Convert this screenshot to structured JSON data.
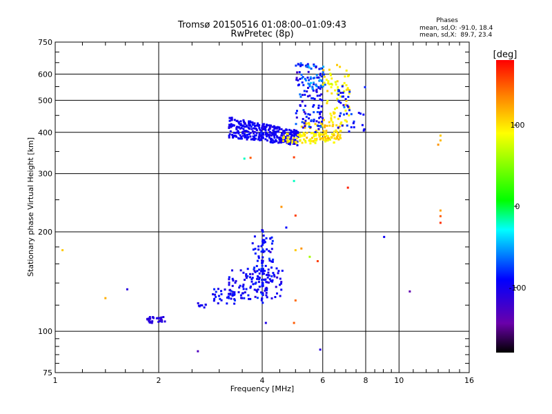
{
  "chart_data": {
    "type": "scatter",
    "title": "Tromsø 20150516 01:08:00–01:09:43",
    "subtitle": "RwPretec (8p)",
    "xlabel": "Frequency [MHz]",
    "ylabel": "Stationary phase Virtual Height [km]",
    "x_scale": "log",
    "y_scale": "log",
    "xlim": [
      1,
      16
    ],
    "ylim": [
      75,
      750
    ],
    "x_ticks": [
      1,
      2,
      4,
      6,
      8,
      10,
      16
    ],
    "x_tick_labels": [
      "1",
      "2",
      "4",
      "6",
      "8",
      "10",
      "16"
    ],
    "x_grid_lines": [
      1,
      2,
      4,
      6,
      8,
      10
    ],
    "y_ticks": [
      75,
      100,
      200,
      300,
      400,
      500,
      600,
      750
    ],
    "y_tick_labels": [
      "75",
      "100",
      "200",
      "300",
      "400",
      "500",
      "600",
      "750"
    ],
    "y_grid_lines": [
      100,
      200,
      300,
      400,
      500,
      600
    ],
    "grid": true,
    "phase_stats": {
      "heading": "Phases",
      "line_o": "mean, sd,O: -91.0, 18.4",
      "line_x": "mean, sd,X:  89.7, 23.4"
    },
    "colorbar": {
      "label": "[deg]",
      "range": [
        -180,
        180
      ],
      "ticks": [
        100,
        0,
        -100
      ],
      "tick_labels": [
        "100",
        "0",
        "-100"
      ],
      "colormap": "rainbow"
    },
    "clusters": [
      {
        "kind": "band",
        "x0": 3.2,
        "x1": 5.1,
        "ytop0": 445,
        "ytop1": 405,
        "ybot0": 385,
        "ybot1": 365,
        "n": 360,
        "phase": -98,
        "phase_sd": 10
      },
      {
        "kind": "area",
        "x0": 4.6,
        "x1": 6.5,
        "y0": 370,
        "y1": 400,
        "n": 80,
        "phase": 93,
        "phase_sd": 12
      },
      {
        "kind": "area",
        "x0": 5.2,
        "x1": 6.8,
        "y0": 380,
        "y1": 430,
        "n": 70,
        "phase": 105,
        "phase_sd": 15
      },
      {
        "kind": "area",
        "x0": 5.0,
        "x1": 6.0,
        "y0": 400,
        "y1": 650,
        "n": 120,
        "phase": -92,
        "phase_sd": 28
      },
      {
        "kind": "area",
        "x0": 5.3,
        "x1": 6.1,
        "y0": 540,
        "y1": 640,
        "n": 30,
        "phase": -60,
        "phase_sd": 15
      },
      {
        "kind": "area",
        "x0": 6.0,
        "x1": 7.2,
        "y0": 420,
        "y1": 640,
        "n": 70,
        "phase": 95,
        "phase_sd": 14
      },
      {
        "kind": "area",
        "x0": 6.6,
        "x1": 8.0,
        "y0": 400,
        "y1": 560,
        "n": 40,
        "phase": -88,
        "phase_sd": 20
      },
      {
        "kind": "area",
        "x0": 3.2,
        "x1": 4.6,
        "y0": 125,
        "y1": 155,
        "n": 110,
        "phase": -98,
        "phase_sd": 14
      },
      {
        "kind": "area",
        "x0": 2.8,
        "x1": 3.4,
        "y0": 120,
        "y1": 135,
        "n": 30,
        "phase": -90,
        "phase_sd": 18
      },
      {
        "kind": "area",
        "x0": 3.75,
        "x1": 4.3,
        "y0": 140,
        "y1": 195,
        "n": 55,
        "phase": -90,
        "phase_sd": 18
      },
      {
        "kind": "line",
        "x0": 3.98,
        "x1": 4.02,
        "y0": 108,
        "y1": 210,
        "n": 35,
        "phase": -85,
        "phase_sd": 22
      },
      {
        "kind": "area",
        "x0": 1.85,
        "x1": 2.1,
        "y0": 106,
        "y1": 111,
        "n": 32,
        "phase": -110,
        "phase_sd": 8
      },
      {
        "kind": "area",
        "x0": 2.6,
        "x1": 2.75,
        "y0": 118,
        "y1": 122,
        "n": 8,
        "phase": -100,
        "phase_sd": 10
      }
    ],
    "points": [
      {
        "x": 1.05,
        "y": 176,
        "phase": 110
      },
      {
        "x": 1.4,
        "y": 126,
        "phase": 120
      },
      {
        "x": 1.62,
        "y": 134,
        "phase": -110
      },
      {
        "x": 2.6,
        "y": 87,
        "phase": -130
      },
      {
        "x": 4.1,
        "y": 106,
        "phase": -105
      },
      {
        "x": 4.95,
        "y": 106,
        "phase": 150
      },
      {
        "x": 5.0,
        "y": 124,
        "phase": 145
      },
      {
        "x": 3.7,
        "y": 335,
        "phase": 150
      },
      {
        "x": 3.55,
        "y": 333,
        "phase": -20
      },
      {
        "x": 4.95,
        "y": 336,
        "phase": 160
      },
      {
        "x": 4.95,
        "y": 285,
        "phase": -20
      },
      {
        "x": 7.1,
        "y": 272,
        "phase": 170
      },
      {
        "x": 4.55,
        "y": 238,
        "phase": 130
      },
      {
        "x": 5.0,
        "y": 224,
        "phase": 160
      },
      {
        "x": 4.7,
        "y": 206,
        "phase": -90
      },
      {
        "x": 5.5,
        "y": 168,
        "phase": 60
      },
      {
        "x": 5.8,
        "y": 163,
        "phase": 160
      },
      {
        "x": 5.0,
        "y": 176,
        "phase": 110
      },
      {
        "x": 5.2,
        "y": 178,
        "phase": 130
      },
      {
        "x": 5.9,
        "y": 88,
        "phase": -110
      },
      {
        "x": 9.05,
        "y": 193,
        "phase": -95
      },
      {
        "x": 10.75,
        "y": 132,
        "phase": -140
      },
      {
        "x": 13.2,
        "y": 391,
        "phase": 110
      },
      {
        "x": 13.2,
        "y": 378,
        "phase": 115
      },
      {
        "x": 13.0,
        "y": 367,
        "phase": 130
      },
      {
        "x": 13.2,
        "y": 232,
        "phase": 125
      },
      {
        "x": 13.2,
        "y": 223,
        "phase": 150
      },
      {
        "x": 13.2,
        "y": 213,
        "phase": 165
      }
    ]
  }
}
